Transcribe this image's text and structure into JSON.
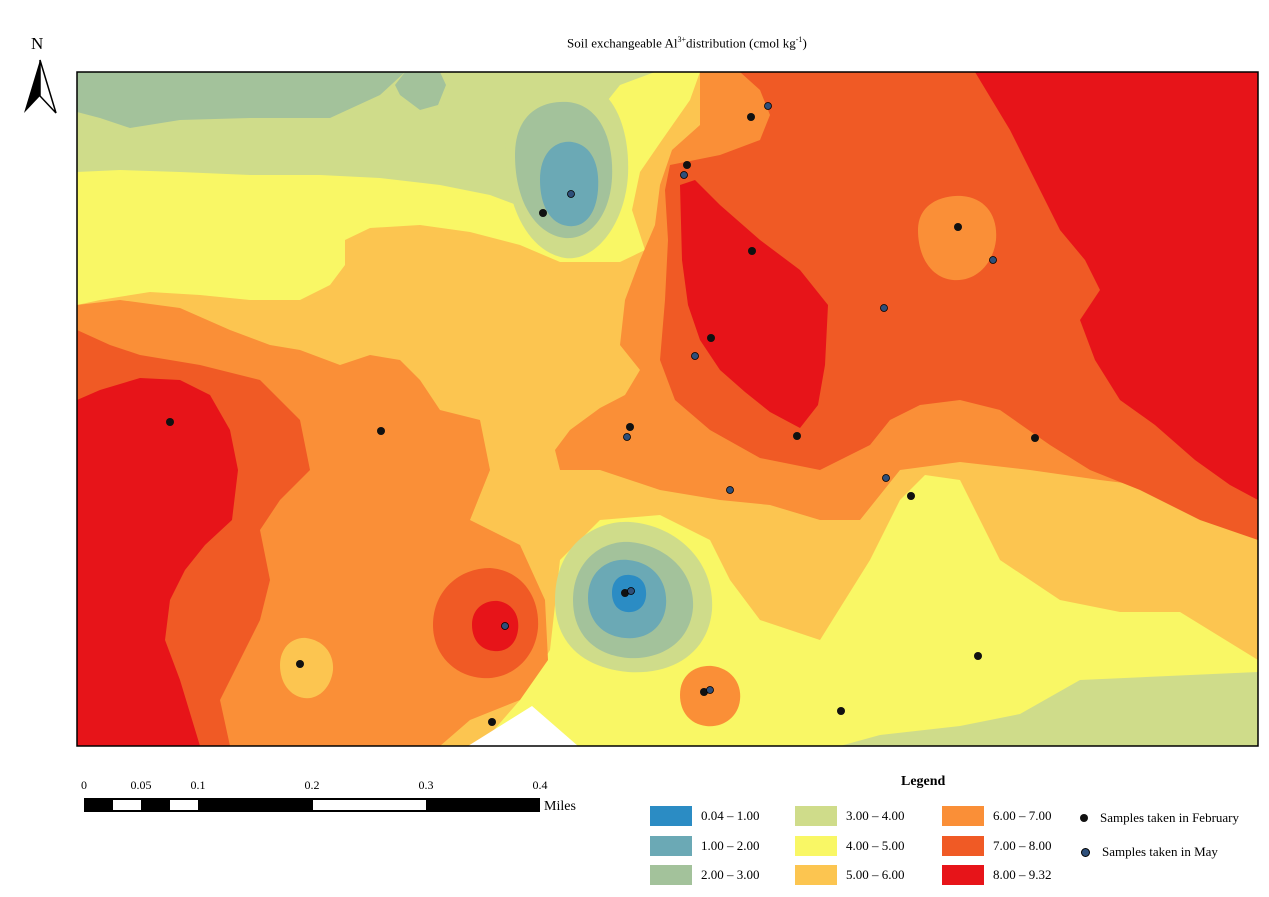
{
  "title": {
    "prefix": "Soil exchangeable Al",
    "superscript": "3+",
    "middle": "distribution (cmol kg",
    "unit_superscript": "-1",
    "suffix": ")"
  },
  "north_arrow": {
    "label": "N"
  },
  "scale_bar": {
    "unit": "Miles",
    "ticks": [
      {
        "value": 0,
        "label": "0"
      },
      {
        "value": 0.05,
        "label": "0.05"
      },
      {
        "value": 0.1,
        "label": "0.1"
      },
      {
        "value": 0.2,
        "label": "0.2"
      },
      {
        "value": 0.3,
        "label": "0.3"
      },
      {
        "value": 0.4,
        "label": "0.4"
      }
    ]
  },
  "legend": {
    "title": "Legend",
    "classes": [
      {
        "range": "0.04 – 1.00",
        "color": "#2b8cc4"
      },
      {
        "range": "1.00 – 2.00",
        "color": "#6ba9b5"
      },
      {
        "range": "2.00 – 3.00",
        "color": "#a3c29b"
      },
      {
        "range": "3.00 – 4.00",
        "color": "#cfdc8a"
      },
      {
        "range": "4.00 – 5.00",
        "color": "#f9f765"
      },
      {
        "range": "5.00 – 6.00",
        "color": "#fcc550"
      },
      {
        "range": "6.00 – 7.00",
        "color": "#fa8f37"
      },
      {
        "range": "7.00 – 8.00",
        "color": "#f05a25"
      },
      {
        "range": "8.00 – 9.32",
        "color": "#e71419"
      }
    ],
    "samples": [
      {
        "label": "Samples taken in February",
        "color": "#111111"
      },
      {
        "label": "Samples taken in May",
        "color": "#2e4f7a"
      }
    ]
  }
}
